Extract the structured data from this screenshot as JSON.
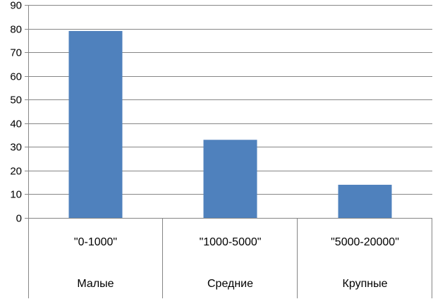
{
  "chart_data": {
    "type": "bar",
    "title": "",
    "xlabel": "",
    "ylabel": "",
    "ylim": [
      0,
      90
    ],
    "yticks": [
      0,
      10,
      20,
      30,
      40,
      50,
      60,
      70,
      80,
      90
    ],
    "grid": true,
    "legend": "none",
    "bar_color": "#4F81BD",
    "categories": [
      {
        "range": "\"0-1000\"",
        "group": "Малые"
      },
      {
        "range": "\"1000-5000\"",
        "group": "Средние"
      },
      {
        "range": "\"5000-20000\"",
        "group": "Крупные"
      }
    ],
    "values": [
      79,
      33,
      14
    ]
  }
}
